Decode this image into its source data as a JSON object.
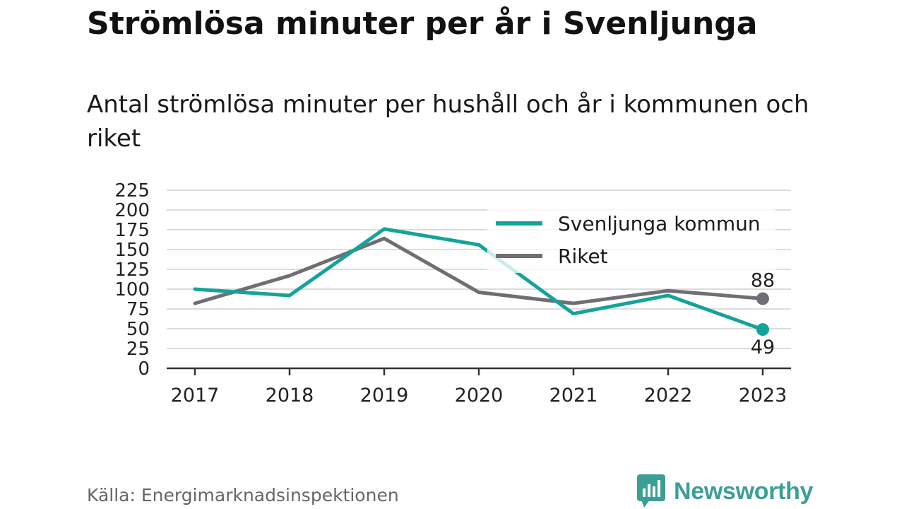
{
  "title": "Strömlösa minuter per år i Svenljunga",
  "subtitle": "Antal strömlösa minuter per hushåll och år i kommunen och riket",
  "source": "Källa: Energimarknadsinspektionen",
  "brand": {
    "name": "Newsworthy",
    "icon": "newsworthy-logo-icon",
    "color": "#3d9e98"
  },
  "chart_data": {
    "type": "line",
    "x": [
      "2017",
      "2018",
      "2019",
      "2020",
      "2021",
      "2022",
      "2023"
    ],
    "ylim": [
      0,
      225
    ],
    "yticks": [
      0,
      25,
      50,
      75,
      100,
      125,
      150,
      175,
      200,
      225
    ],
    "grid": true,
    "legend_position": "top-right",
    "series": [
      {
        "name": "Svenljunga kommun",
        "color": "#14a39a",
        "values": [
          100,
          92,
          176,
          156,
          69,
          92,
          49
        ],
        "end_label": "49"
      },
      {
        "name": "Riket",
        "color": "#6f6e74",
        "values": [
          82,
          117,
          164,
          96,
          82,
          98,
          88
        ],
        "end_label": "88"
      }
    ]
  }
}
